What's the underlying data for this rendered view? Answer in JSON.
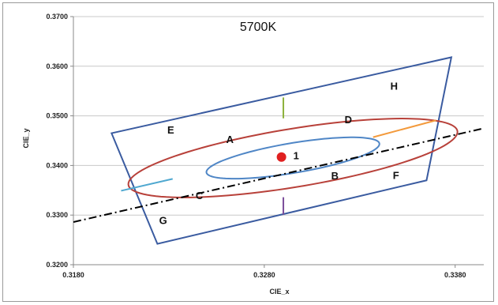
{
  "chart_data": {
    "type": "scatter",
    "title": "5700K",
    "xlabel": "CIE_x",
    "ylabel": "CIE_y",
    "xlim": [
      0.318,
      0.3395
    ],
    "ylim": [
      0.32,
      0.37
    ],
    "x_ticks": [
      0.318,
      0.328,
      0.338
    ],
    "x_tick_labels": [
      "0.3180",
      "0.3280",
      "0.3380"
    ],
    "y_ticks": [
      0.32,
      0.33,
      0.34,
      0.35,
      0.36,
      0.37
    ],
    "y_tick_labels": [
      "0.3200",
      "0.3300",
      "0.3400",
      "0.3500",
      "0.3600",
      "0.3700"
    ],
    "grid": "horizontal",
    "colors": {
      "quadrangle": "#3a5ba0",
      "outer_ellipse": "#b8413a",
      "inner_ellipse": "#4f86c6",
      "center_point": "#e02020",
      "green_segment": "#8cb13a",
      "purple_segment": "#7b4d9a",
      "orange_segment": "#f39a3c",
      "cyan_segment": "#4fa8d0",
      "dashdot_line": "#000000",
      "grid": "#c8c8c8"
    },
    "quadrangle": [
      [
        0.32,
        0.3465
      ],
      [
        0.3378,
        0.3618
      ],
      [
        0.3365,
        0.337
      ],
      [
        0.3224,
        0.3242
      ]
    ],
    "inner_ellipse": {
      "center": [
        0.3295,
        0.3415
      ],
      "semi_major": 0.00565,
      "semi_minor": 0.00245,
      "angle_deg": 41.5
    },
    "outer_ellipse": {
      "center": [
        0.3295,
        0.3415
      ],
      "semi_major": 0.0107,
      "semi_minor": 0.0048,
      "angle_deg": 41.5
    },
    "center_point": {
      "x": 0.3289,
      "y": 0.3417,
      "label": "1"
    },
    "dashdot_line": [
      [
        0.318,
        0.3286
      ],
      [
        0.3394,
        0.3474
      ]
    ],
    "segments": [
      {
        "name": "green",
        "points": [
          [
            0.329,
            0.3495
          ],
          [
            0.329,
            0.3537
          ]
        ]
      },
      {
        "name": "purple",
        "points": [
          [
            0.329,
            0.3336
          ],
          [
            0.329,
            0.3301
          ]
        ]
      },
      {
        "name": "orange",
        "points": [
          [
            0.3337,
            0.3457
          ],
          [
            0.337,
            0.3491
          ]
        ]
      },
      {
        "name": "cyan",
        "points": [
          [
            0.3205,
            0.3349
          ],
          [
            0.3232,
            0.3373
          ]
        ]
      }
    ],
    "region_labels": [
      {
        "text": "A",
        "x": 0.3262,
        "y": 0.3453
      },
      {
        "text": "B",
        "x": 0.3317,
        "y": 0.338
      },
      {
        "text": "C",
        "x": 0.3246,
        "y": 0.334
      },
      {
        "text": "D",
        "x": 0.3324,
        "y": 0.3493
      },
      {
        "text": "E",
        "x": 0.3231,
        "y": 0.3472
      },
      {
        "text": "F",
        "x": 0.3349,
        "y": 0.3381
      },
      {
        "text": "G",
        "x": 0.3227,
        "y": 0.329
      },
      {
        "text": "H",
        "x": 0.3348,
        "y": 0.3561
      }
    ]
  }
}
